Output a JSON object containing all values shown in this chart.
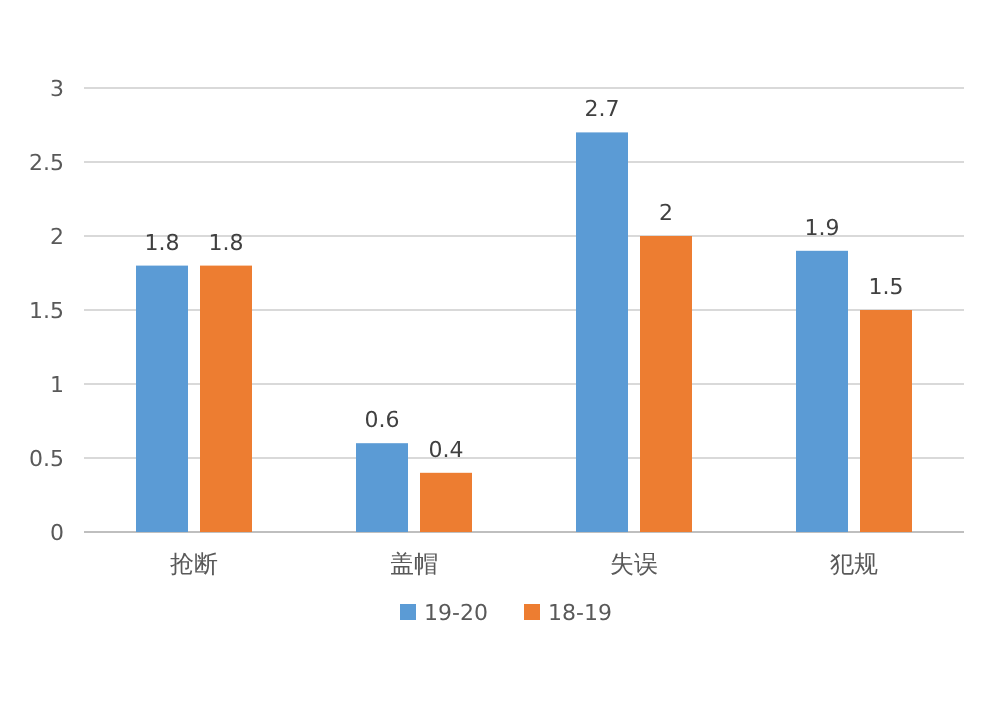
{
  "chart_data": {
    "type": "bar",
    "categories": [
      "抢断",
      "盖帽",
      "失误",
      "犯规"
    ],
    "series": [
      {
        "name": "19-20",
        "color": "#5b9bd5",
        "values": [
          1.8,
          0.6,
          2.7,
          1.9
        ]
      },
      {
        "name": "18-19",
        "color": "#ed7d31",
        "values": [
          1.8,
          0.4,
          2,
          1.5
        ]
      }
    ],
    "ylim": [
      0,
      3
    ],
    "yticks": [
      0,
      0.5,
      1,
      1.5,
      2,
      2.5,
      3
    ],
    "grid": "y",
    "legend": "bottom",
    "data_labels": true
  }
}
